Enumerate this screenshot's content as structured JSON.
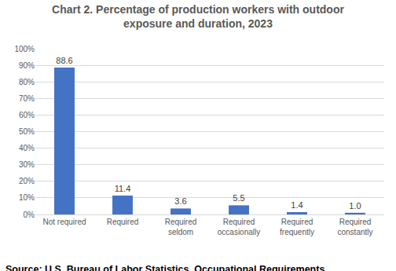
{
  "chart_data": {
    "type": "bar",
    "title": "Chart 2. Percentage of production workers with outdoor exposure and duration, 2023",
    "categories": [
      "Not required",
      "Required",
      "Required seldom",
      "Required occasionally",
      "Required frequently",
      "Required constantly"
    ],
    "values": [
      88.6,
      11.4,
      3.6,
      5.5,
      1.4,
      1.0
    ],
    "value_labels": [
      "88.6",
      "11.4",
      "3.6",
      "5.5",
      "1.4",
      "1.0"
    ],
    "data_labels": true,
    "color": "#4472c4",
    "ylim": [
      0,
      100
    ],
    "yticks": [
      {
        "value": 0,
        "label": "0%"
      },
      {
        "value": 10,
        "label": "10%"
      },
      {
        "value": 20,
        "label": "20%"
      },
      {
        "value": 30,
        "label": "30%"
      },
      {
        "value": 40,
        "label": "40%"
      },
      {
        "value": 50,
        "label": "50%"
      },
      {
        "value": 60,
        "label": "60%"
      },
      {
        "value": 70,
        "label": "70%"
      },
      {
        "value": 80,
        "label": "80%"
      },
      {
        "value": 90,
        "label": "90%"
      },
      {
        "value": 100,
        "label": "100%"
      }
    ],
    "grid": true,
    "annotations": [
      "Source: U.S. Bureau of Labor Statistics, Occupational Requirements"
    ]
  }
}
